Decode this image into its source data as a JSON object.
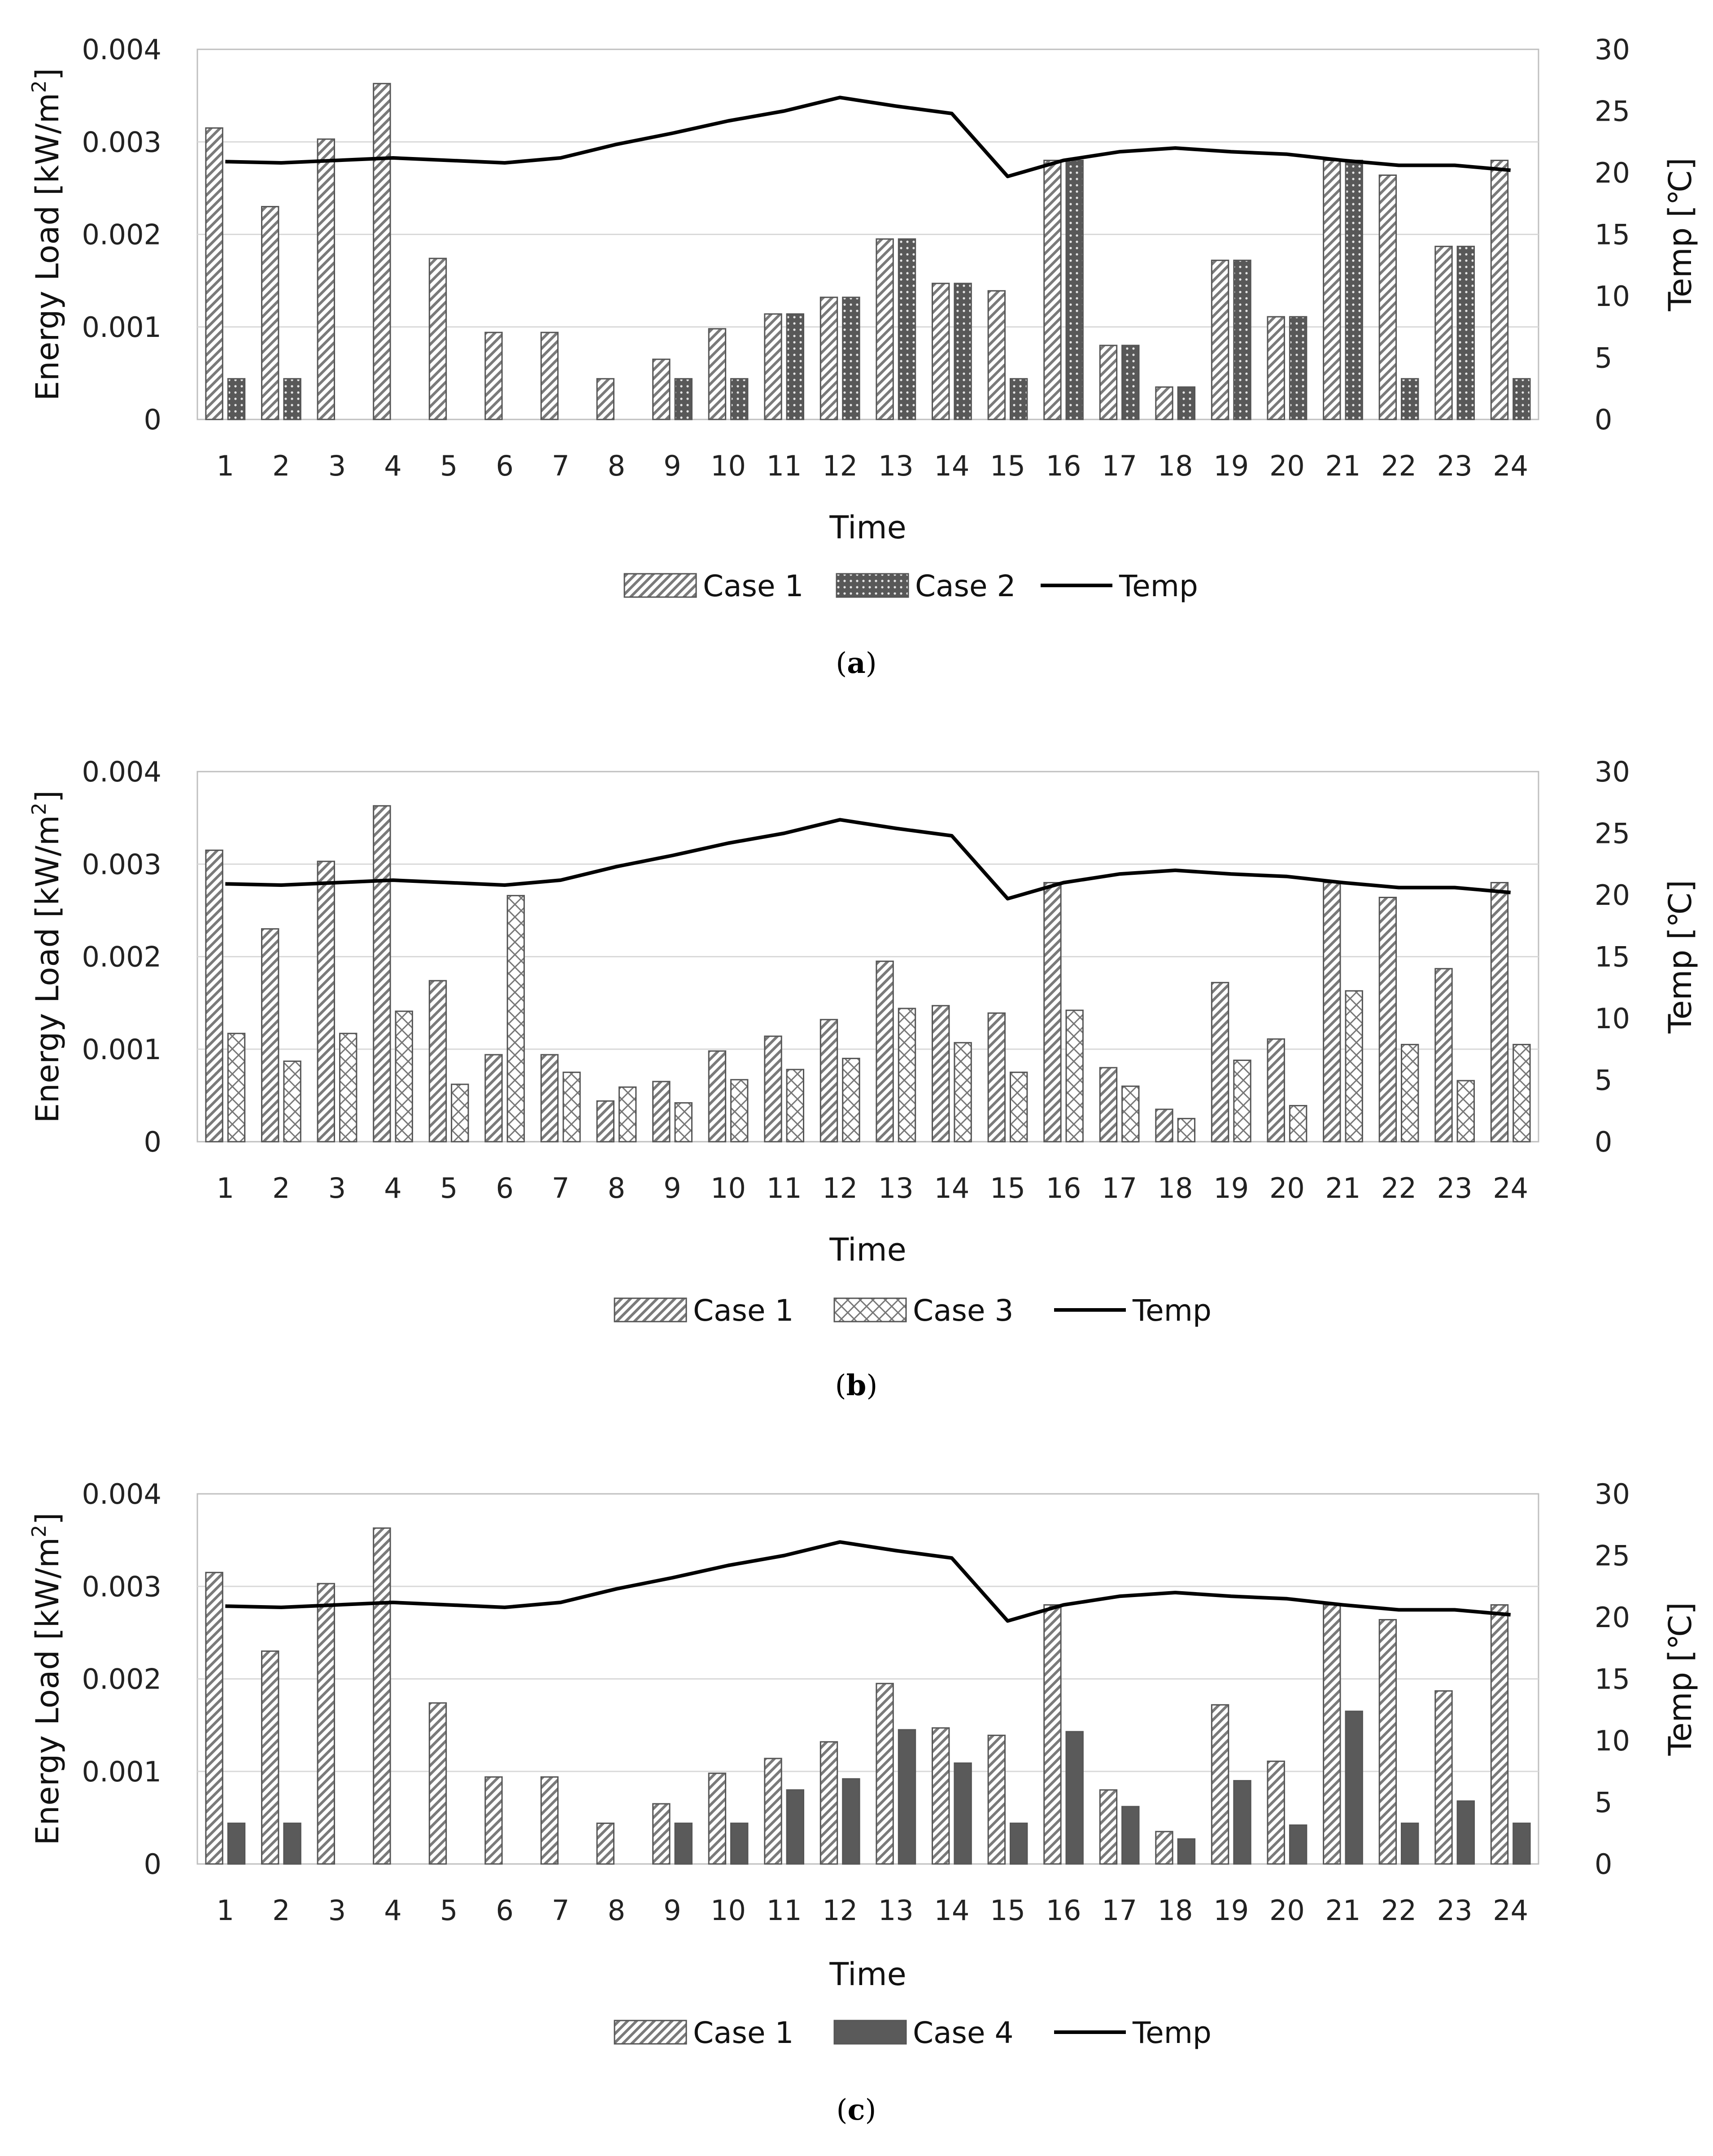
{
  "colors": {
    "grid": "#d9d9d9",
    "frame": "#bfbfbf",
    "bar_stroke": "#555555",
    "dark": "#5a5a5a",
    "line": "#000000"
  },
  "chart_data": [
    {
      "type": "bar",
      "panel_label": "a",
      "caption": "(a)",
      "categories": [
        "1",
        "2",
        "3",
        "4",
        "5",
        "6",
        "7",
        "8",
        "9",
        "10",
        "11",
        "12",
        "13",
        "14",
        "15",
        "16",
        "17",
        "18",
        "19",
        "20",
        "21",
        "22",
        "23",
        "24"
      ],
      "ylabel": "Energy Load [kW/m²]",
      "ylabel_text": "Energy Load [kW/m",
      "ylabel_sup": "2",
      "ylabel_end": "]",
      "y2label": "Temp [℃]",
      "xlabel": "Time",
      "ylim": [
        0,
        0.004
      ],
      "y_ticks": [
        "0",
        "0.001",
        "0.002",
        "0.003",
        "0.004"
      ],
      "y2lim": [
        0,
        30
      ],
      "y2_ticks": [
        "0",
        "5",
        "10",
        "15",
        "20",
        "25",
        "30"
      ],
      "grid": true,
      "legend_position": "bottom",
      "series": [
        {
          "name": "Case 1",
          "kind": "bar",
          "pattern": "diag",
          "values": [
            0.00315,
            0.0023,
            0.00303,
            0.00363,
            0.00174,
            0.00094,
            0.00094,
            0.00044,
            0.00065,
            0.00098,
            0.00114,
            0.00132,
            0.00195,
            0.00147,
            0.00139,
            0.0028,
            0.0008,
            0.00035,
            0.00172,
            0.00111,
            0.0028,
            0.00264,
            0.00187,
            0.0028
          ]
        },
        {
          "name": "Case 2",
          "kind": "bar",
          "pattern": "dots",
          "values": [
            0.00044,
            0.00044,
            0,
            0,
            0,
            0,
            0,
            0,
            0.00044,
            0.00044,
            0.00114,
            0.00132,
            0.00195,
            0.00147,
            0.00044,
            0.0028,
            0.0008,
            0.00035,
            0.00172,
            0.00111,
            0.0028,
            0.00044,
            0.00187,
            0.00044
          ]
        },
        {
          "name": "Temp",
          "kind": "line",
          "axis": "right",
          "values": [
            20.9,
            20.8,
            21,
            21.2,
            21,
            20.8,
            21.2,
            22.3,
            23.2,
            24.2,
            25,
            26.1,
            25.4,
            24.8,
            19.7,
            21,
            21.7,
            22,
            21.7,
            21.5,
            21,
            20.6,
            20.6,
            20.2
          ]
        }
      ]
    },
    {
      "type": "bar",
      "panel_label": "b",
      "caption": "(b)",
      "categories": [
        "1",
        "2",
        "3",
        "4",
        "5",
        "6",
        "7",
        "8",
        "9",
        "10",
        "11",
        "12",
        "13",
        "14",
        "15",
        "16",
        "17",
        "18",
        "19",
        "20",
        "21",
        "22",
        "23",
        "24"
      ],
      "ylabel": "Energy Load [kW/m²]",
      "ylabel_text": "Energy Load [kW/m",
      "ylabel_sup": "2",
      "ylabel_end": "]",
      "y2label": "Temp [℃]",
      "xlabel": "Time",
      "ylim": [
        0,
        0.004
      ],
      "y_ticks": [
        "0",
        "0.001",
        "0.002",
        "0.003",
        "0.004"
      ],
      "y2lim": [
        0,
        30
      ],
      "y2_ticks": [
        "0",
        "5",
        "10",
        "15",
        "20",
        "25",
        "30"
      ],
      "grid": true,
      "legend_position": "bottom",
      "series": [
        {
          "name": "Case 1",
          "kind": "bar",
          "pattern": "diag",
          "values": [
            0.00315,
            0.0023,
            0.00303,
            0.00363,
            0.00174,
            0.00094,
            0.00094,
            0.00044,
            0.00065,
            0.00098,
            0.00114,
            0.00132,
            0.00195,
            0.00147,
            0.00139,
            0.0028,
            0.0008,
            0.00035,
            0.00172,
            0.00111,
            0.0028,
            0.00264,
            0.00187,
            0.0028
          ]
        },
        {
          "name": "Case 3",
          "kind": "bar",
          "pattern": "cross",
          "values": [
            0.00117,
            0.00087,
            0.00117,
            0.00141,
            0.00062,
            0.00266,
            0.00075,
            0.00059,
            0.00042,
            0.00067,
            0.00078,
            0.0009,
            0.00144,
            0.00107,
            0.00075,
            0.00142,
            0.0006,
            0.00025,
            0.00088,
            0.00039,
            0.00163,
            0.00105,
            0.00066,
            0.00105
          ]
        },
        {
          "name": "Temp",
          "kind": "line",
          "axis": "right",
          "values": [
            20.9,
            20.8,
            21,
            21.2,
            21,
            20.8,
            21.2,
            22.3,
            23.2,
            24.2,
            25,
            26.1,
            25.4,
            24.8,
            19.7,
            21,
            21.7,
            22,
            21.7,
            21.5,
            21,
            20.6,
            20.6,
            20.2
          ]
        }
      ]
    },
    {
      "type": "bar",
      "panel_label": "c",
      "caption": "(c)",
      "categories": [
        "1",
        "2",
        "3",
        "4",
        "5",
        "6",
        "7",
        "8",
        "9",
        "10",
        "11",
        "12",
        "13",
        "14",
        "15",
        "16",
        "17",
        "18",
        "19",
        "20",
        "21",
        "22",
        "23",
        "24"
      ],
      "ylabel": "Energy Load [kW/m²]",
      "ylabel_text": "Energy Load [kW/m",
      "ylabel_sup": "2",
      "ylabel_end": "]",
      "y2label": "Temp [℃]",
      "xlabel": "Time",
      "ylim": [
        0,
        0.004
      ],
      "y_ticks": [
        "0",
        "0.001",
        "0.002",
        "0.003",
        "0.004"
      ],
      "y2lim": [
        0,
        30
      ],
      "y2_ticks": [
        "0",
        "5",
        "10",
        "15",
        "20",
        "25",
        "30"
      ],
      "grid": true,
      "legend_position": "bottom",
      "series": [
        {
          "name": "Case 1",
          "kind": "bar",
          "pattern": "diag",
          "values": [
            0.00315,
            0.0023,
            0.00303,
            0.00363,
            0.00174,
            0.00094,
            0.00094,
            0.00044,
            0.00065,
            0.00098,
            0.00114,
            0.00132,
            0.00195,
            0.00147,
            0.00139,
            0.0028,
            0.0008,
            0.00035,
            0.00172,
            0.00111,
            0.0028,
            0.00264,
            0.00187,
            0.0028
          ]
        },
        {
          "name": "Case 4",
          "kind": "bar",
          "pattern": "solid",
          "values": [
            0.00044,
            0.00044,
            0,
            0,
            0,
            0,
            0,
            0,
            0.00044,
            0.00044,
            0.0008,
            0.00092,
            0.00145,
            0.00109,
            0.00044,
            0.00143,
            0.00062,
            0.00027,
            0.0009,
            0.00042,
            0.00165,
            0.00044,
            0.00068,
            0.00044
          ]
        },
        {
          "name": "Temp",
          "kind": "line",
          "axis": "right",
          "values": [
            20.9,
            20.8,
            21,
            21.2,
            21,
            20.8,
            21.2,
            22.3,
            23.2,
            24.2,
            25,
            26.1,
            25.4,
            24.8,
            19.7,
            21,
            21.7,
            22,
            21.7,
            21.5,
            21,
            20.6,
            20.6,
            20.2
          ]
        }
      ]
    }
  ]
}
